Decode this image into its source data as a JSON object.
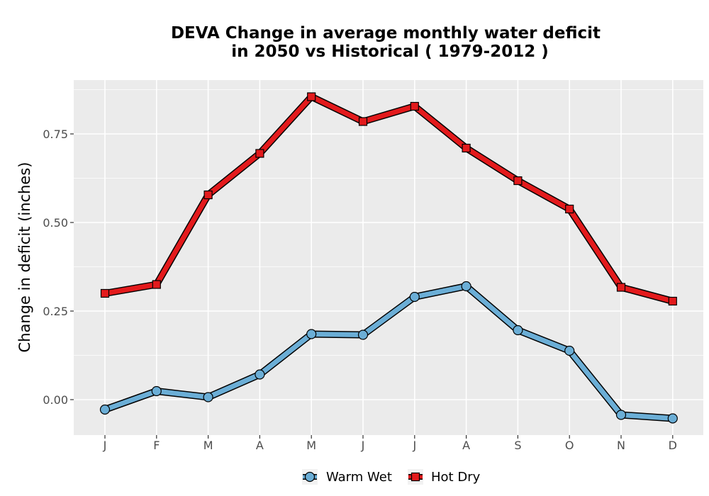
{
  "chart_data": {
    "type": "line",
    "title_line1": "DEVA  Change in average monthly water deficit",
    "title_line2": "in 2050 vs Historical ( 1979-2012 )",
    "xlabel": "",
    "ylabel": "Change in deficit (inches)",
    "categories": [
      "J",
      "F",
      "M",
      "A",
      "M",
      "J",
      "J",
      "A",
      "S",
      "O",
      "N",
      "D"
    ],
    "ylim": [
      -0.1,
      0.9
    ],
    "yticks": [
      0.0,
      0.25,
      0.5,
      0.75
    ],
    "ytick_labels": [
      "0.00",
      "0.25",
      "0.50",
      "0.75"
    ],
    "grid": true,
    "legend_position": "bottom",
    "series": [
      {
        "name": "Warm Wet",
        "color": "#6baed6",
        "marker": "circle",
        "values": [
          -0.028,
          0.024,
          0.007,
          0.071,
          0.185,
          0.183,
          0.29,
          0.32,
          0.196,
          0.138,
          -0.043,
          -0.053
        ]
      },
      {
        "name": "Hot Dry",
        "color": "#e31a1c",
        "marker": "square",
        "values": [
          0.3,
          0.325,
          0.578,
          0.695,
          0.855,
          0.785,
          0.828,
          0.71,
          0.618,
          0.538,
          0.317,
          0.278
        ]
      }
    ]
  }
}
